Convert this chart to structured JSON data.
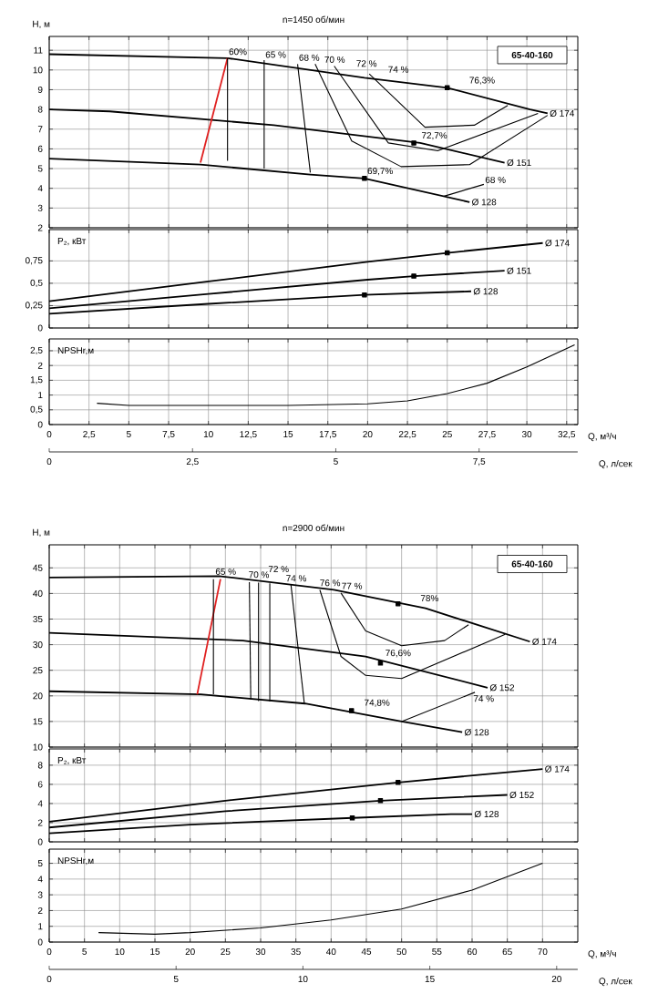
{
  "chart_data": [
    {
      "type": "line",
      "title": "n=1450 об/мин",
      "ylabel": "H, м",
      "xlim": [
        0,
        33.2
      ],
      "ylim": [
        2,
        11.7
      ],
      "xticks": [
        0,
        2.5,
        5,
        7.5,
        10,
        12.5,
        15,
        17.5,
        20,
        22.5,
        25,
        27.5,
        30,
        32.5
      ],
      "yticks": [
        2,
        3,
        4,
        5,
        6,
        7,
        8,
        9,
        10,
        11
      ],
      "grid": true,
      "tick_labels": "y",
      "marker": "none",
      "annotations": [
        "65-40-160",
        {
          "text": "60%",
          "x": 11.2,
          "y": 10.7
        },
        {
          "text": "65 %",
          "x": 13.5,
          "y": 10.55
        },
        {
          "text": "68 %",
          "x": 15.6,
          "y": 10.4
        },
        {
          "text": "70 %",
          "x": 17.2,
          "y": 10.3
        },
        {
          "text": "72 %",
          "x": 19.2,
          "y": 10.1
        },
        {
          "text": "74 %",
          "x": 21.2,
          "y": 9.8
        },
        {
          "text": "76,3%",
          "x": 26.3,
          "y": 9.2
        },
        {
          "text": "72,7%",
          "x": 23.3,
          "y": 6.4
        },
        {
          "text": "69,7%",
          "x": 19.9,
          "y": 4.6
        },
        {
          "text": "68 %",
          "x": 27.3,
          "y": 4.2
        }
      ],
      "series": [
        {
          "name": "Ø 174",
          "color": "#000000",
          "x": [
            0,
            11.2,
            19.8,
            25,
            30.2,
            31.3
          ],
          "values": [
            10.8,
            10.6,
            9.6,
            9.1,
            8.0,
            7.8
          ]
        },
        {
          "name": "Ø 151",
          "color": "#000000",
          "x": [
            0,
            3.8,
            14.1,
            23.3,
            28.6
          ],
          "values": [
            8.0,
            7.9,
            7.2,
            6.3,
            5.3
          ]
        },
        {
          "name": "Ø 128",
          "color": "#000000",
          "x": [
            0,
            9.5,
            16.4,
            19.8,
            26.4
          ],
          "values": [
            5.5,
            5.2,
            4.7,
            4.5,
            3.3
          ]
        },
        {
          "color": "#e02020",
          "x": [
            9.5,
            11.2
          ],
          "values": [
            5.3,
            10.6
          ]
        },
        {
          "color": "#000000",
          "x": [
            11.2,
            11.2
          ],
          "values": [
            10.6,
            5.4
          ]
        },
        {
          "color": "#000000",
          "x": [
            13.5,
            13.5
          ],
          "values": [
            10.5,
            5.0
          ]
        },
        {
          "color": "#000000",
          "x": [
            15.6,
            16.4
          ],
          "values": [
            10.3,
            4.8
          ]
        },
        {
          "color": "#000000",
          "x": [
            16.7,
            19.0,
            22.1,
            26.4,
            31.3
          ],
          "values": [
            10.3,
            6.4,
            5.1,
            5.2,
            7.7
          ]
        },
        {
          "color": "#000000",
          "x": [
            17.9,
            21.3,
            24.4,
            30.7
          ],
          "values": [
            10.2,
            6.3,
            5.9,
            7.8
          ]
        },
        {
          "color": "#000000",
          "x": [
            20.1,
            23.6,
            26.7,
            28.8
          ],
          "values": [
            9.8,
            7.1,
            7.2,
            8.2
          ]
        },
        {
          "color": "#000000",
          "x": [
            24.8,
            27.3
          ],
          "values": [
            3.6,
            4.2
          ]
        },
        {
          "type": "scatter",
          "marker": "square",
          "color": "#000000",
          "x": [
            25,
            22.9,
            19.8
          ],
          "values": [
            9.1,
            6.3,
            4.5
          ]
        }
      ]
    },
    {
      "type": "line",
      "ylabel": "P₂, кВт",
      "xlim": [
        0,
        33.2
      ],
      "ylim": [
        0,
        1.1
      ],
      "xticks": [
        0,
        2.5,
        5,
        7.5,
        10,
        12.5,
        15,
        17.5,
        20,
        22.5,
        25,
        27.5,
        30,
        32.5
      ],
      "yticks": [
        0,
        {
          "value": 0.25,
          "label": "0,25"
        },
        {
          "value": 0.5,
          "label": "0,5"
        },
        {
          "value": 0.75,
          "label": "0,75"
        }
      ],
      "grid": true,
      "tick_labels": "y",
      "marker": "none",
      "series": [
        {
          "name": "Ø 174",
          "color": "#000000",
          "x": [
            0,
            10,
            20,
            25,
            31
          ],
          "values": [
            0.3,
            0.52,
            0.74,
            0.84,
            0.95
          ]
        },
        {
          "name": "Ø 151",
          "color": "#000000",
          "x": [
            0,
            10,
            20,
            22.9,
            28.6
          ],
          "values": [
            0.22,
            0.38,
            0.54,
            0.58,
            0.64
          ]
        },
        {
          "name": "Ø 128",
          "color": "#000000",
          "x": [
            0,
            10,
            19.8,
            26.5
          ],
          "values": [
            0.16,
            0.27,
            0.37,
            0.41
          ]
        },
        {
          "type": "scatter",
          "marker": "square",
          "color": "#000000",
          "x": [
            25,
            22.9,
            19.8
          ],
          "values": [
            0.84,
            0.58,
            0.37
          ]
        }
      ]
    },
    {
      "type": "line",
      "ylabel": "NPSHr,м",
      "xlabel": "Q, м³/ч",
      "x2label": "Q, л/сек",
      "xlim": [
        0,
        33.2
      ],
      "ylim": [
        0,
        2.9
      ],
      "x2lim": [
        0,
        9.22
      ],
      "xticks": [
        0,
        {
          "value": 2.5,
          "label": "2,5"
        },
        5,
        {
          "value": 7.5,
          "label": "7,5"
        },
        10,
        {
          "value": 12.5,
          "label": "12,5"
        },
        15,
        {
          "value": 17.5,
          "label": "17,5"
        },
        20,
        {
          "value": 22.5,
          "label": "22,5"
        },
        25,
        {
          "value": 27.5,
          "label": "27,5"
        },
        30,
        {
          "value": 32.5,
          "label": "32,5"
        }
      ],
      "x2ticks": [
        0,
        {
          "value": 2.5,
          "label": "2,5"
        },
        5,
        {
          "value": 7.5,
          "label": "7,5"
        }
      ],
      "yticks": [
        0,
        {
          "value": 0.5,
          "label": "0,5"
        },
        1,
        {
          "value": 1.5,
          "label": "1,5"
        },
        2,
        {
          "value": 2.5,
          "label": "2,5"
        }
      ],
      "grid": true,
      "marker": "none",
      "series": [
        {
          "color": "#000000",
          "x": [
            3,
            5,
            10,
            15,
            20,
            22.5,
            25,
            27.5,
            30,
            33
          ],
          "values": [
            0.72,
            0.65,
            0.65,
            0.65,
            0.7,
            0.8,
            1.05,
            1.4,
            1.95,
            2.7
          ]
        }
      ]
    },
    {
      "type": "line",
      "title": "n=2900 об/мин",
      "ylabel": "H, м",
      "xlim": [
        0,
        75
      ],
      "ylim": [
        10,
        49.5
      ],
      "xticks": [
        0,
        5,
        10,
        15,
        20,
        25,
        30,
        35,
        40,
        45,
        50,
        55,
        60,
        65,
        70
      ],
      "yticks": [
        10,
        15,
        20,
        25,
        30,
        35,
        40,
        45
      ],
      "grid": true,
      "tick_labels": "y",
      "marker": "none",
      "annotations": [
        "65-40-160",
        {
          "text": "65 %",
          "x": 23.4,
          "y": 43.4
        },
        {
          "text": "70 %",
          "x": 28.1,
          "y": 42.8
        },
        {
          "text": "72 %",
          "x": 30.9,
          "y": 43.9
        },
        {
          "text": "74 %",
          "x": 33.4,
          "y": 42.1
        },
        {
          "text": "76 %",
          "x": 38.2,
          "y": 41.2
        },
        {
          "text": "77 %",
          "x": 41.3,
          "y": 40.6
        },
        {
          "text": "78%",
          "x": 52.5,
          "y": 38.2
        },
        {
          "text": "76,6%",
          "x": 47.5,
          "y": 27.3
        },
        {
          "text": "74 %",
          "x": 60.0,
          "y": 18.6
        },
        {
          "text": "74,8%",
          "x": 44.5,
          "y": 17.6
        }
      ],
      "series": [
        {
          "name": "Ø 174",
          "color": "#000000",
          "x": [
            0,
            24.1,
            40.4,
            53.4,
            68.2
          ],
          "values": [
            43.1,
            43.4,
            40.7,
            37.1,
            30.6
          ]
        },
        {
          "name": "Ø 152",
          "color": "#000000",
          "x": [
            0,
            27.5,
            44.9,
            62.2
          ],
          "values": [
            32.3,
            30.8,
            27.7,
            21.6
          ]
        },
        {
          "name": "Ø 128",
          "color": "#000000",
          "x": [
            0,
            21.5,
            36.3,
            50,
            58.6
          ],
          "values": [
            20.9,
            20.3,
            18.5,
            15,
            12.9
          ]
        },
        {
          "color": "#e02020",
          "x": [
            21.0,
            24.3
          ],
          "values": [
            20.3,
            42.8
          ]
        },
        {
          "color": "#000000",
          "x": [
            23.3,
            23.3
          ],
          "values": [
            42.8,
            20.3
          ]
        },
        {
          "color": "#000000",
          "x": [
            28.4,
            28.6
          ],
          "values": [
            42.2,
            19.3
          ]
        },
        {
          "color": "#000000",
          "x": [
            29.7,
            29.7
          ],
          "values": [
            42.1,
            19.0
          ]
        },
        {
          "color": "#000000",
          "x": [
            31.3,
            31.3
          ],
          "values": [
            42.0,
            18.9
          ]
        },
        {
          "color": "#000000",
          "x": [
            34.3,
            36.2
          ],
          "values": [
            41.7,
            18.5
          ]
        },
        {
          "color": "#000000",
          "x": [
            38.4,
            41.4,
            44.9,
            50,
            64.7
          ],
          "values": [
            40.7,
            27.7,
            24.0,
            23.4,
            32.0
          ]
        },
        {
          "color": "#000000",
          "x": [
            41.4,
            44.9,
            50,
            56.1,
            59.5
          ],
          "values": [
            40.1,
            32.7,
            29.8,
            30.8,
            33.9
          ]
        },
        {
          "color": "#000000",
          "x": [
            50,
            60.4
          ],
          "values": [
            15,
            20.7
          ]
        },
        {
          "type": "scatter",
          "marker": "square",
          "color": "#000000",
          "x": [
            49.5,
            47,
            42.9
          ],
          "values": [
            38.0,
            26.4,
            17.1
          ]
        }
      ]
    },
    {
      "type": "line",
      "ylabel": "P₂, кВт",
      "xlim": [
        0,
        75
      ],
      "ylim": [
        0,
        9.7
      ],
      "xticks": [
        0,
        5,
        10,
        15,
        20,
        25,
        30,
        35,
        40,
        45,
        50,
        55,
        60,
        65,
        70
      ],
      "yticks": [
        0,
        2,
        4,
        6,
        8
      ],
      "grid": true,
      "tick_labels": "y",
      "marker": "none",
      "series": [
        {
          "name": "Ø 174",
          "color": "#000000",
          "x": [
            0,
            25,
            49.5,
            70
          ],
          "values": [
            2.1,
            4.3,
            6.2,
            7.6
          ]
        },
        {
          "name": "Ø 152",
          "color": "#000000",
          "x": [
            0,
            25,
            47,
            65
          ],
          "values": [
            1.5,
            3.2,
            4.3,
            4.9
          ]
        },
        {
          "name": "Ø 128",
          "color": "#000000",
          "x": [
            0,
            20,
            43,
            57,
            60
          ],
          "values": [
            0.9,
            1.8,
            2.5,
            2.9,
            2.9
          ]
        },
        {
          "type": "scatter",
          "marker": "square",
          "color": "#000000",
          "x": [
            49.5,
            47,
            43
          ],
          "values": [
            6.2,
            4.3,
            2.5
          ]
        }
      ]
    },
    {
      "type": "line",
      "ylabel": "NPSHr,м",
      "xlabel": "Q, м³/ч",
      "x2label": "Q, л/сек",
      "xlim": [
        0,
        75
      ],
      "ylim": [
        0,
        5.9
      ],
      "x2lim": [
        0,
        20.83
      ],
      "xticks": [
        0,
        5,
        10,
        15,
        20,
        25,
        30,
        35,
        40,
        45,
        50,
        55,
        60,
        65,
        70
      ],
      "x2ticks": [
        0,
        5,
        10,
        15,
        20
      ],
      "yticks": [
        0,
        1,
        2,
        3,
        4,
        5
      ],
      "grid": true,
      "marker": "none",
      "series": [
        {
          "color": "#000000",
          "x": [
            7,
            15,
            20,
            30,
            40,
            50,
            60,
            70
          ],
          "values": [
            0.6,
            0.5,
            0.6,
            0.9,
            1.4,
            2.1,
            3.3,
            5.0
          ]
        }
      ]
    }
  ]
}
